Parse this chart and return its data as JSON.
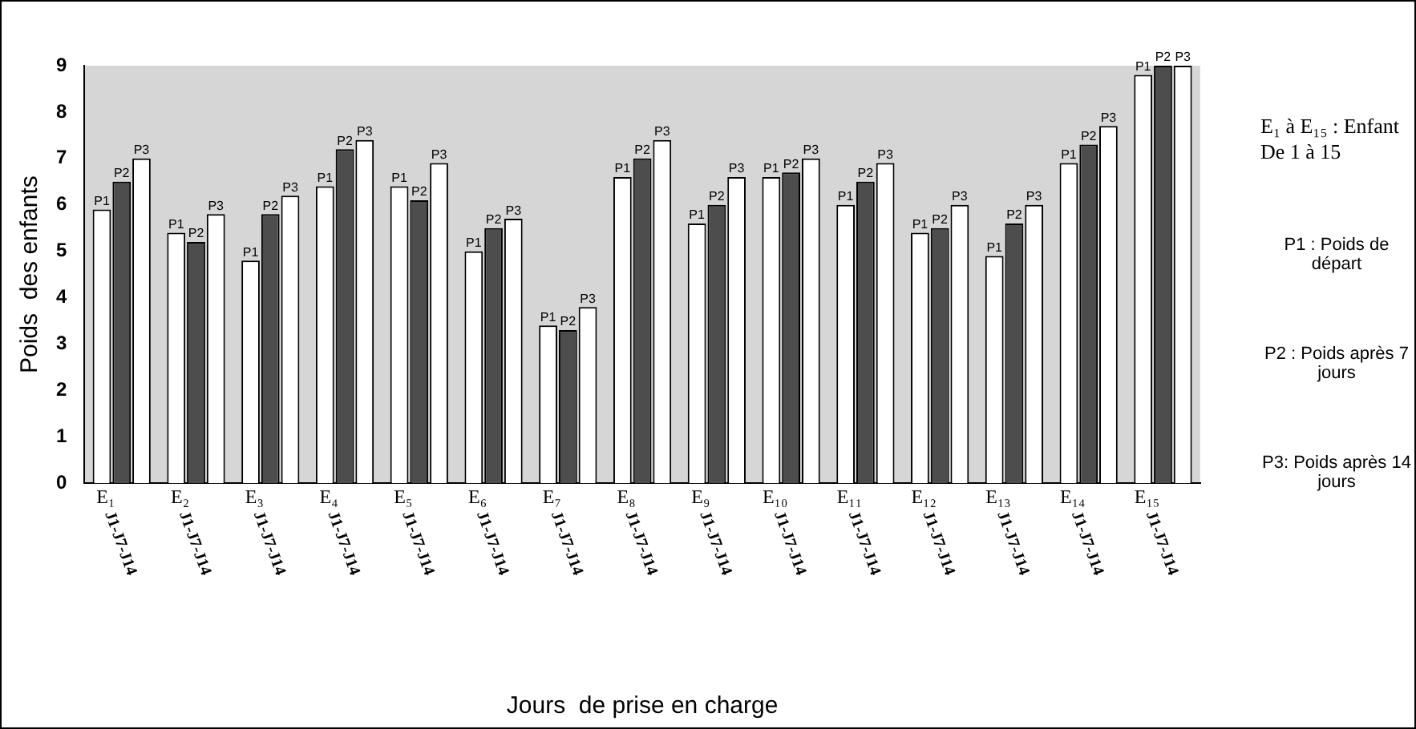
{
  "chart_data": {
    "type": "bar",
    "xlabel": "Jours  de prise en charge",
    "ylabel": "Poids  des enfants",
    "categories": [
      "E₁ J1-J7-J14",
      "E₂ J1-J7-J14",
      "E₃ J1-J7-J14",
      "E₄ J1-J7-J14",
      "E₅ J1-J7-J14",
      "E₆ J1-J7-J14",
      "E₇ J1-J7-J14",
      "E₈ J1-J7-J14",
      "E₉ J1-J7-J14",
      "E₁₀ J1-J7-J14",
      "E₁₁ J1-J7-J14",
      "E₁₂ J1-J7-J14",
      "E₁₃ J1-J7-J14",
      "E₁₄ J1-J7-J14",
      "E₁₅ J1-J7-J14"
    ],
    "series": [
      {
        "name": "P1",
        "color": "#ffffff",
        "values": [
          5.9,
          5.4,
          4.8,
          6.4,
          6.4,
          5.0,
          3.4,
          6.6,
          5.6,
          6.6,
          6.0,
          5.4,
          4.9,
          6.9,
          8.8
        ]
      },
      {
        "name": "P2",
        "color": "#4d4d4d",
        "values": [
          6.5,
          5.2,
          5.8,
          7.2,
          6.1,
          5.5,
          3.3,
          7.0,
          6.0,
          6.7,
          6.5,
          5.5,
          5.6,
          7.3,
          9.0
        ]
      },
      {
        "name": "P3",
        "color": "#ffffff",
        "values": [
          7.0,
          5.8,
          6.2,
          7.4,
          6.9,
          5.7,
          3.8,
          7.4,
          6.6,
          7.0,
          6.9,
          6.0,
          6.0,
          7.7,
          9.0
        ]
      }
    ],
    "ylim": [
      0,
      9
    ],
    "yticks": [
      0,
      1,
      2,
      3,
      4,
      5,
      6,
      7,
      8,
      9
    ],
    "grid": false,
    "legend": false,
    "annotations": [
      "E₁ à E₁₅ : Enfant De 1 à 15",
      "P1 : Poids de départ",
      "P2 : Poids après 7 jours",
      "P3: Poids après 14 jours"
    ]
  }
}
